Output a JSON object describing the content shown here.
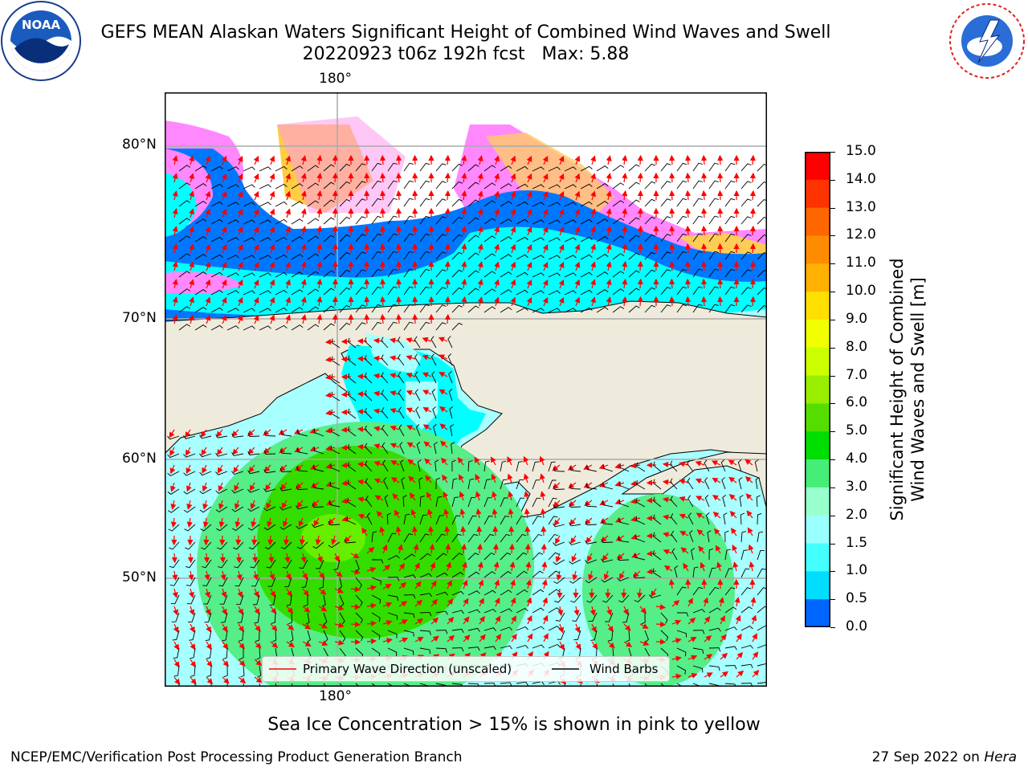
{
  "header": {
    "title": "GEFS MEAN Alaskan Waters Significant Height of Combined Wind Waves and Swell",
    "subtitle": "20220923 t06z 192h fcst   Max: 5.88"
  },
  "logos": {
    "left": "NOAA",
    "right": "NATIONAL WEATHER SERVICE"
  },
  "map": {
    "lon_label_top": "180°",
    "lon_label_bottom": "180°",
    "lat_labels": [
      "80°N",
      "70°N",
      "60°N",
      "50°N"
    ]
  },
  "legend": {
    "wave": "Primary Wave Direction (unscaled)",
    "wind": "Wind Barbs"
  },
  "colorbar": {
    "label_line1": "Significant Height of Combined",
    "label_line2": "Wind Waves and Swell [m]",
    "ticks": [
      "15.0",
      "14.0",
      "13.0",
      "12.0",
      "11.0",
      "10.0",
      "9.0",
      "8.0",
      "7.0",
      "6.0",
      "5.0",
      "4.0",
      "3.0",
      "2.0",
      "1.5",
      "1.0",
      "0.5",
      "0.0"
    ],
    "colors": [
      "#ff0000",
      "#ff3300",
      "#ff6600",
      "#ff8c00",
      "#ffb000",
      "#ffe000",
      "#f2ff00",
      "#ccff00",
      "#99ee00",
      "#55dd00",
      "#00dd00",
      "#44ee77",
      "#99ffcc",
      "#99ffff",
      "#44ffff",
      "#00ddff",
      "#0066ff",
      "#0000ff"
    ]
  },
  "footer": {
    "note": "Sea Ice Concentration > 15% is shown in pink to yellow",
    "credit": "NCEP/EMC/Verification Post Processing Product Generation Branch",
    "date": "27 Sep 2022 on ",
    "host": "Hera"
  },
  "palette": {
    "land": "#efebdc",
    "wave_low": "#a8ffff",
    "wave_mid": "#00ffff",
    "wave_deep": "#0077ff",
    "green_light": "#55ee88",
    "green": "#33dd00",
    "ice_pink": "#ff77ff",
    "ice_yellow": "#ffdd44"
  }
}
